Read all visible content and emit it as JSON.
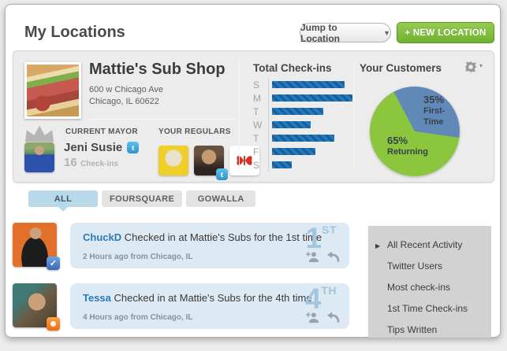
{
  "header": {
    "title": "My Locations",
    "jump_button_label": "Jump to Location",
    "new_location_button_label": "+ NEW LOCATION"
  },
  "icons": {
    "jump_caret": "▼",
    "gear_caret": "▾",
    "active_menu_marker": "▶",
    "twitter_badge_glyph": "t"
  },
  "location_card": {
    "name": "Mattie's Sub Shop",
    "address_line1": "600 w Chicago Ave",
    "address_line2": "Chicago, IL 60622",
    "mayor": {
      "section_label": "CURRENT MAYOR",
      "name": "Jeni Susie",
      "checkins_count": "16",
      "checkins_label": "Check-ins"
    },
    "regulars": {
      "section_label": "YOUR REGULARS"
    }
  },
  "chart_data": [
    {
      "type": "bar",
      "title": "Total Check-ins",
      "orientation": "horizontal",
      "categories": [
        "S",
        "M",
        "T",
        "W",
        "T",
        "F",
        "S"
      ],
      "values": [
        92,
        102,
        65,
        49,
        79,
        55,
        25
      ],
      "note": "no numeric axis labels shown; values are relative bar lengths (px)",
      "bar_color": "#2478bb",
      "grid": false
    },
    {
      "type": "pie",
      "title": "Your Customers",
      "slices": [
        {
          "label": "First-Time",
          "value": 35,
          "pct_label": "35%",
          "color": "#6089b7"
        },
        {
          "label": "Returning",
          "value": 65,
          "pct_label": "65%",
          "color": "#8bc63e"
        }
      ],
      "start_angle_deg": 98,
      "legend_position": "inside"
    }
  ],
  "tabs": [
    {
      "label": "ALL",
      "active": true
    },
    {
      "label": "FOURSQUARE",
      "active": false
    },
    {
      "label": "GOWALLA",
      "active": false
    }
  ],
  "feed": {
    "items": [
      {
        "user": "ChuckD",
        "message": "Checked in at Mattie's Subs for the 1st time",
        "timestamp": "2 Hours ago from Chicago, IL",
        "ordinal_number": "1",
        "ordinal_suffix": "ST",
        "network": "foursquare"
      },
      {
        "user": "Tessa",
        "message": "Checked in at Mattie's Subs for the 4th time",
        "timestamp": "4 Hours ago from Chicago, IL",
        "ordinal_number": "4",
        "ordinal_suffix": "TH",
        "network": "gowalla"
      }
    ]
  },
  "sidebar": {
    "items": [
      {
        "label": "All Recent Activity",
        "active": true
      },
      {
        "label": "Twitter Users",
        "active": false
      },
      {
        "label": "Most check-ins",
        "active": false
      },
      {
        "label": "1st Time Check-ins",
        "active": false
      },
      {
        "label": "Tips Written",
        "active": false
      }
    ]
  },
  "colors": {
    "new_location_green": "#7cb82f",
    "bar_blue": "#2478bb",
    "pie_green": "#8bc63e",
    "pie_blue": "#6089b7",
    "tab_active_blue": "#b9d8e9",
    "feed_card_blue": "#dde9f3",
    "sidebar_gray": "#d2d2d2"
  }
}
